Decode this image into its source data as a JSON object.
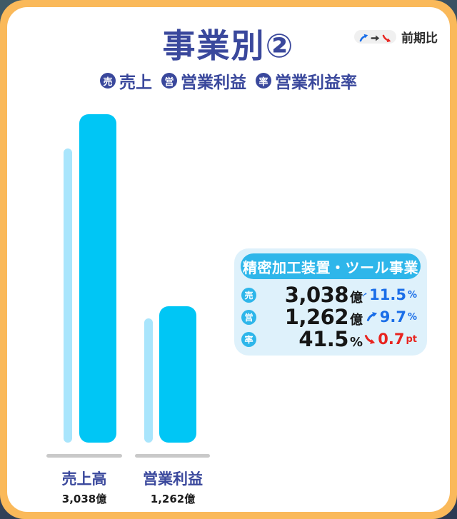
{
  "header": {
    "title": "事業別②",
    "period_note": {
      "label": "前期比",
      "arrows": [
        "up",
        "right",
        "down"
      ]
    }
  },
  "legend": {
    "items": [
      {
        "badge": "売",
        "label": "売上"
      },
      {
        "badge": "営",
        "label": "営業利益"
      },
      {
        "badge": "率",
        "label": "営業利益率"
      }
    ]
  },
  "chart_data": {
    "type": "bar",
    "categories": [
      "売上高",
      "営業利益"
    ],
    "series": [
      {
        "name": "前期",
        "values": [
          2725,
          1150
        ],
        "color": "#a9e5fc"
      },
      {
        "name": "当期",
        "values": [
          3038,
          1262
        ],
        "color": "#00c6f5"
      }
    ],
    "value_labels": [
      "3,038億",
      "1,262億"
    ],
    "unit": "億",
    "ylim": [
      0,
      3100
    ],
    "grid": false,
    "legend_position": "none"
  },
  "info_card": {
    "title": "精密加工装置・ツール事業",
    "rows": [
      {
        "badge": "売",
        "value": "3,038",
        "unit": "億",
        "direction": "up",
        "change": "11.5",
        "change_unit": "%"
      },
      {
        "badge": "営",
        "value": "1,262",
        "unit": "億",
        "direction": "up",
        "change": "9.7",
        "change_unit": "%"
      },
      {
        "badge": "率",
        "value": "41.5",
        "unit": "%",
        "direction": "down",
        "change": "0.7",
        "change_unit": "pt"
      }
    ]
  },
  "colors": {
    "navy": "#3a489c",
    "bar_current": "#00c6f5",
    "bar_previous": "#a9e5fc",
    "cyan_deep": "#2eb6ea",
    "card_bg": "#def1fb",
    "up_blue": "#1a6ee8",
    "down_red": "#e8241f",
    "arrow_dark": "#3c3c3c",
    "frame_orange": "#fab95a",
    "baseline_gray": "#c9c9c9"
  }
}
